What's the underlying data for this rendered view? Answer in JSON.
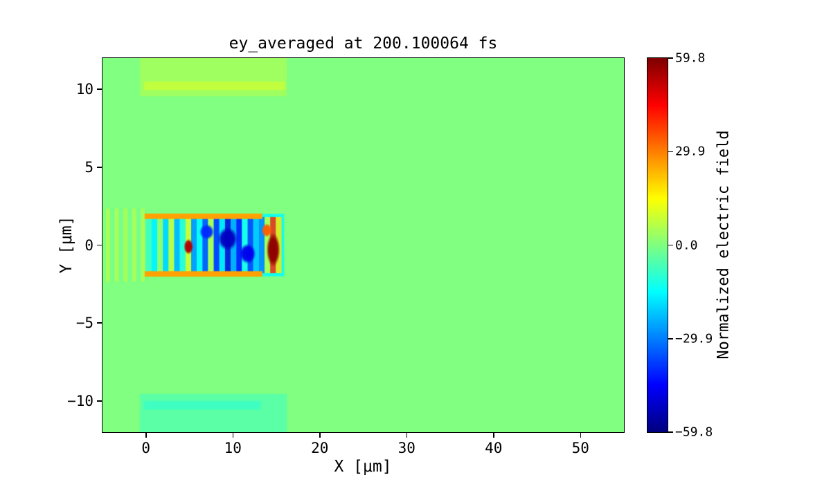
{
  "colors": {
    "background": "#ffffff",
    "axis": "#000000",
    "text": "#000000"
  },
  "chart_data": {
    "type": "heatmap",
    "title": "ey_averaged at 200.100064 fs",
    "xlabel": "X [μm]",
    "ylabel": "Y [μm]",
    "xlim": [
      -5,
      55
    ],
    "ylim": [
      -12,
      12
    ],
    "grid": false,
    "xticks": {
      "values": [
        0,
        10,
        20,
        30,
        40,
        50
      ],
      "labels": [
        "0",
        "10",
        "20",
        "30",
        "40",
        "50"
      ]
    },
    "yticks": {
      "values": [
        -10,
        -5,
        0,
        5,
        10
      ],
      "labels": [
        "−10",
        "−5",
        "0",
        "5",
        "10"
      ]
    },
    "colorbar": {
      "label": "Normalized electric field",
      "colormap": "jet",
      "vmin": -59.8,
      "vmax": 59.8,
      "position": "right",
      "ticks": {
        "values": [
          59.8,
          29.9,
          0.0,
          -29.9,
          -59.8
        ],
        "labels": [
          "59.8",
          "29.9",
          "0.0",
          "−29.9",
          "−59.8"
        ]
      }
    },
    "background_value": 0.0,
    "features": [
      {
        "shape": "fill",
        "name": "background-field",
        "value": 0.0
      },
      {
        "shape": "rect",
        "name": "upper-mirror-band",
        "x": [
          -0.7,
          16.2
        ],
        "y": [
          9.55,
          12.0
        ],
        "value": 4,
        "alpha": 0.9
      },
      {
        "shape": "rect",
        "name": "upper-mirror-bright-line",
        "x": [
          -0.2,
          16.0
        ],
        "y": [
          9.95,
          10.5
        ],
        "value": 8,
        "alpha": 0.9
      },
      {
        "shape": "rect",
        "name": "lower-mirror-band",
        "x": [
          -0.7,
          16.2
        ],
        "y": [
          -12.0,
          -9.55
        ],
        "value": -5,
        "alpha": 0.9
      },
      {
        "shape": "rect",
        "name": "lower-mirror-bright-line",
        "x": [
          -0.2,
          13.2
        ],
        "y": [
          -10.55,
          -10.0
        ],
        "value": -8,
        "alpha": 0.9
      },
      {
        "shape": "stripes",
        "name": "entrance-fringes",
        "x": [
          -4.6,
          0.1
        ],
        "y": [
          -2.35,
          2.35
        ],
        "period": 0.5,
        "values": [
          8,
          -2
        ],
        "alpha": 0.55
      },
      {
        "shape": "rect",
        "name": "channel-base",
        "x": [
          0.0,
          15.9
        ],
        "y": [
          -2.0,
          2.0
        ],
        "value": -13,
        "alpha": 1
      },
      {
        "shape": "stripes",
        "name": "channel-field-oscillations",
        "x": [
          0.0,
          15.6
        ],
        "y": [
          -1.8,
          1.8
        ],
        "period": 0.65,
        "alpha": 0.85,
        "values": [
          -6,
          -16,
          4,
          -20,
          10,
          -24,
          -10,
          12,
          -28,
          -14,
          -36,
          8,
          -40,
          -18,
          -50,
          -26,
          -44,
          -12,
          -38,
          -22,
          -30,
          8,
          40,
          18
        ]
      },
      {
        "shape": "line",
        "name": "channel-upper-edge",
        "x": [
          -0.15,
          13.4
        ],
        "y": 1.85,
        "thickness": 0.35,
        "value": 26
      },
      {
        "shape": "line",
        "name": "channel-lower-edge",
        "x": [
          -0.15,
          13.4
        ],
        "y": -1.85,
        "thickness": 0.35,
        "value": 26
      },
      {
        "shape": "blob",
        "name": "deep-blue-pocket-1",
        "cx": 9.4,
        "cy": 0.4,
        "rx": 1.15,
        "ry": 0.75,
        "value": -52
      },
      {
        "shape": "blob",
        "name": "deep-blue-pocket-2",
        "cx": 11.7,
        "cy": -0.55,
        "rx": 0.95,
        "ry": 0.65,
        "value": -47
      },
      {
        "shape": "blob",
        "name": "deep-blue-pocket-3",
        "cx": 7.0,
        "cy": 0.85,
        "rx": 0.85,
        "ry": 0.5,
        "value": -40
      },
      {
        "shape": "blob",
        "name": "red-hotspot-small",
        "cx": 4.9,
        "cy": -0.1,
        "rx": 0.55,
        "ry": 0.5,
        "value": 54
      },
      {
        "shape": "blob",
        "name": "orange-rim",
        "cx": 13.9,
        "cy": 0.95,
        "rx": 0.6,
        "ry": 0.45,
        "value": 34
      },
      {
        "shape": "blob",
        "name": "peak-field-hotspot",
        "cx": 14.65,
        "cy": -0.3,
        "rx": 0.8,
        "ry": 1.1,
        "value": 58
      }
    ]
  }
}
